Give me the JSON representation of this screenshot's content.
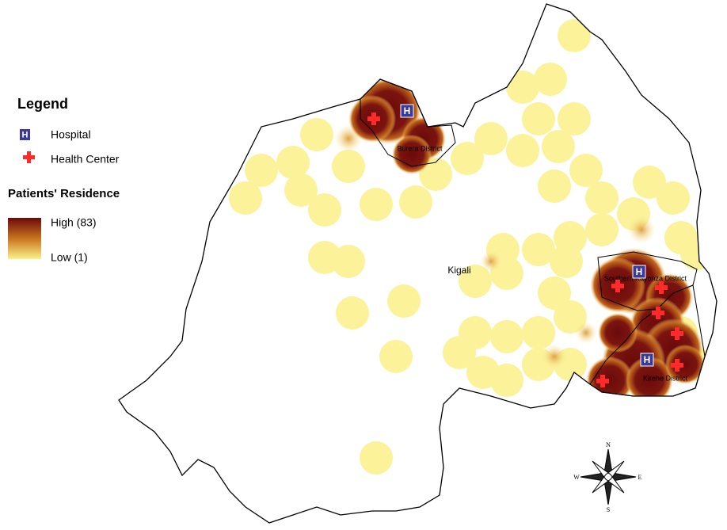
{
  "legend": {
    "title": "Legend",
    "hospital": "Hospital",
    "health_center": "Health Center",
    "heat_title": "Patients' Residence",
    "high": "High (83)",
    "low": "Low (1)"
  },
  "hospital_symbol": "H",
  "places": {
    "kigali": "Kigali"
  },
  "districts": {
    "burera": "Burera District",
    "kayonza": "Southern Kayonza District",
    "kirehe": "Kirehe District"
  },
  "compass": {
    "n": "N",
    "s": "S",
    "e": "E",
    "w": "W"
  }
}
